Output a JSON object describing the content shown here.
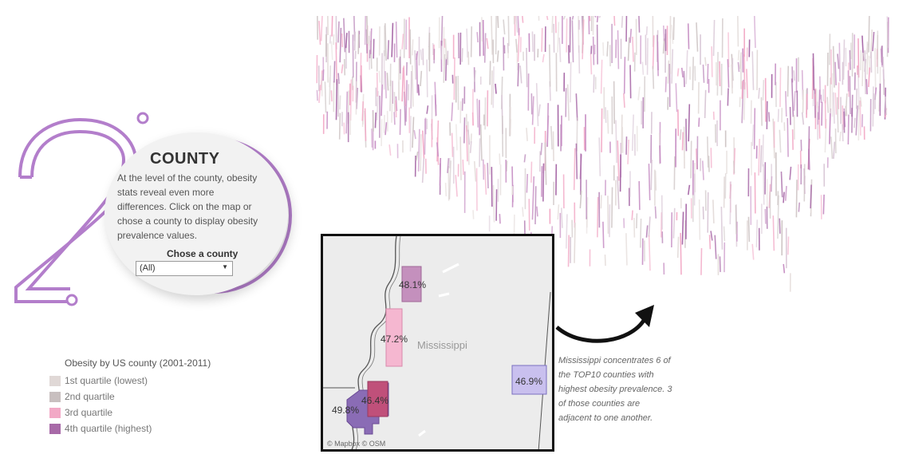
{
  "header": {
    "big_numeral": "2"
  },
  "card": {
    "title": "COUNTY",
    "description": "At the level of the county, obesity stats reveal even more differences. Click on the map or chose a county to display obesity prevalence values.",
    "select_label": "Chose a county",
    "select_value": "(All)"
  },
  "legend": {
    "title": "Obesity by US county (2001-2011)",
    "items": [
      {
        "label": "1st quartile (lowest)",
        "color": "#e0d8d6"
      },
      {
        "label": "2nd quartile",
        "color": "#c8bfbf"
      },
      {
        "label": "3rd quartile",
        "color": "#f2a9c6"
      },
      {
        "label": "4th quartile (highest)",
        "color": "#a86aa8"
      }
    ]
  },
  "inset_map": {
    "state": "Mississippi",
    "attribution": "© Mapbox  © OSM",
    "counties": [
      {
        "value": "48.1%",
        "color": "#c490bd"
      },
      {
        "value": "47.2%",
        "color": "#f5b7d0"
      },
      {
        "value": "46.9%",
        "color": "#c9c0ee"
      },
      {
        "value": "46.4%",
        "color": "#c0507a"
      },
      {
        "value": "49.8%",
        "color": "#8a6cb5"
      }
    ]
  },
  "callout": {
    "text": "Mississippi concentrates 6 of the TOP10 counties with highest obesity prevalence. 3 of those counties are adjacent to one another."
  },
  "colors": {
    "accent": "#b37ecb"
  }
}
